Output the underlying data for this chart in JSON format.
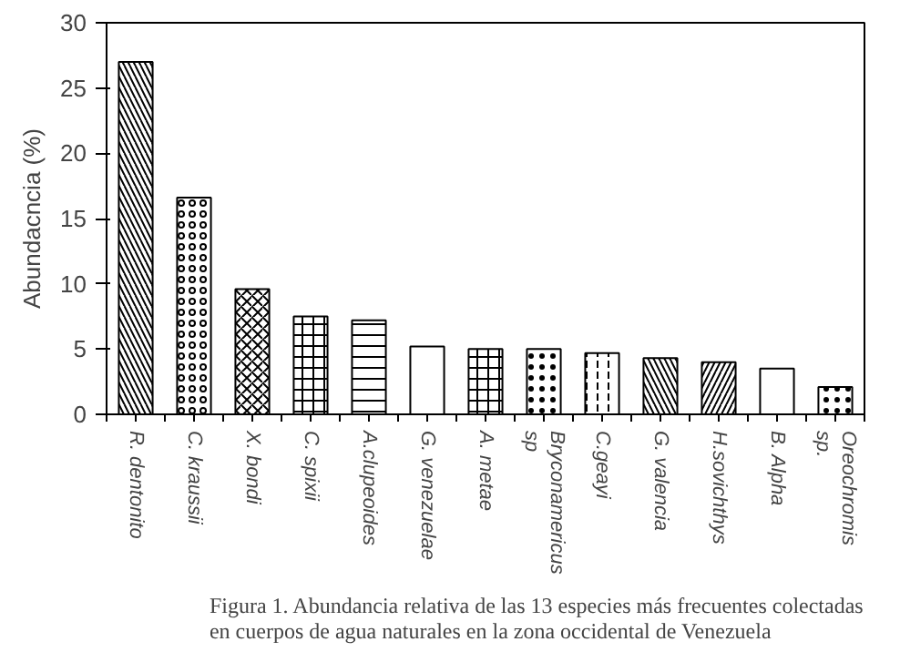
{
  "chart_data": {
    "type": "bar",
    "categories": [
      "R. dentonito",
      "C. kraussii",
      "X. bondi",
      "C. spixii",
      "A.clupeoides",
      "G. venezuelae",
      "A. metae",
      "Bryconamericus\nsp",
      "C.geayi",
      "G. valencia",
      "H.sovichthys",
      "B. Alpha",
      "Oreochromis\nsp."
    ],
    "values": [
      27.0,
      16.6,
      9.6,
      7.5,
      7.2,
      5.2,
      5.0,
      5.0,
      4.7,
      4.3,
      4.0,
      3.5,
      2.1
    ],
    "colors": [
      "#ffffff",
      "#ffffff",
      "#ffffff",
      "#ffffff",
      "#ffffff",
      "#ffffff",
      "#ffffff",
      "#ffffff",
      "#ffffff",
      "#ffffff",
      "#ffffff",
      "#ffffff",
      "#ffffff"
    ],
    "ylabel": "Abundacncia (%)",
    "ylim": [
      0,
      30
    ],
    "yticks": [
      0,
      5,
      10,
      15,
      20,
      25,
      30
    ],
    "annotations": [
      "Figura 1. Abundancia relativa de las 13 especies más frecuentes colectadas\nen cuerpos de agua naturales en la zona occidental de Venezuela"
    ]
  }
}
